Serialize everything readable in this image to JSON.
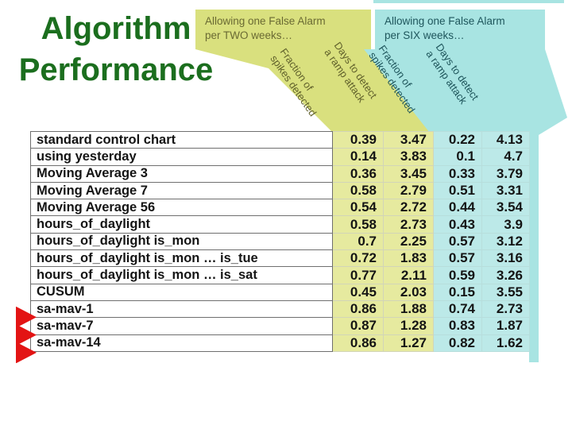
{
  "slide": {
    "title": [
      "Algorithm",
      "Performance"
    ]
  },
  "groups": [
    {
      "id": "two_weeks",
      "heading": [
        "Allowing one False Alarm",
        "per TWO weeks…"
      ],
      "fraction_label": [
        "Fraction of",
        "spikes detected"
      ],
      "days_label": [
        "Days to detect",
        "a ramp attack"
      ]
    },
    {
      "id": "six_weeks",
      "heading": [
        "Allowing one False Alarm",
        "per SIX weeks…"
      ],
      "fraction_label": [
        "Fraction of",
        "spikes detected"
      ],
      "days_label": [
        "Days to detect",
        "a ramp attack"
      ]
    }
  ],
  "table": {
    "columns": [
      "algorithm",
      "two_weeks_fraction_of_spikes_detected",
      "two_weeks_days_to_detect_ramp_attack",
      "six_weeks_fraction_of_spikes_detected",
      "six_weeks_days_to_detect_ramp_attack"
    ],
    "rows": [
      {
        "label": "standard control chart",
        "values": [
          "0.39",
          "3.47",
          "0.22",
          "4.13"
        ],
        "highlighted": false
      },
      {
        "label": "using yesterday",
        "values": [
          "0.14",
          "3.83",
          "0.1",
          "4.7"
        ],
        "highlighted": false
      },
      {
        "label": "Moving Average 3",
        "values": [
          "0.36",
          "3.45",
          "0.33",
          "3.79"
        ],
        "highlighted": false
      },
      {
        "label": "Moving Average 7",
        "values": [
          "0.58",
          "2.79",
          "0.51",
          "3.31"
        ],
        "highlighted": false
      },
      {
        "label": "Moving Average 56",
        "values": [
          "0.54",
          "2.72",
          "0.44",
          "3.54"
        ],
        "highlighted": false
      },
      {
        "label": "hours_of_daylight",
        "values": [
          "0.58",
          "2.73",
          "0.43",
          "3.9"
        ],
        "highlighted": false
      },
      {
        "label": "hours_of_daylight is_mon",
        "values": [
          "0.7",
          "2.25",
          "0.57",
          "3.12"
        ],
        "highlighted": false
      },
      {
        "label": "hours_of_daylight is_mon … is_tue",
        "values": [
          "0.72",
          "1.83",
          "0.57",
          "3.16"
        ],
        "highlighted": false
      },
      {
        "label": "hours_of_daylight is_mon … is_sat",
        "values": [
          "0.77",
          "2.11",
          "0.59",
          "3.26"
        ],
        "highlighted": false
      },
      {
        "label": "CUSUM",
        "values": [
          "0.45",
          "2.03",
          "0.15",
          "3.55"
        ],
        "highlighted": false
      },
      {
        "label": "sa-mav-1",
        "values": [
          "0.86",
          "1.88",
          "0.74",
          "2.73"
        ],
        "highlighted": true
      },
      {
        "label": "sa-mav-7",
        "values": [
          "0.87",
          "1.28",
          "0.83",
          "1.87"
        ],
        "highlighted": true
      },
      {
        "label": "sa-mav-14",
        "values": [
          "0.86",
          "1.27",
          "0.82",
          "1.62"
        ],
        "highlighted": true
      }
    ]
  },
  "colors": {
    "title_green": "#1b6e1e",
    "highlight_yellow": "#d9e07e",
    "cell_yellow": "#e6ea9f",
    "highlight_cyan": "#a8e4e2",
    "cell_cyan": "#bce9e8",
    "arrow_red": "#e31414"
  }
}
